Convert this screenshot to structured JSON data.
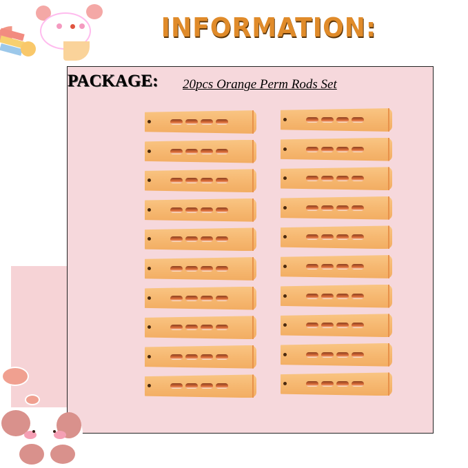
{
  "header": {
    "title": "INFORMATION:"
  },
  "package": {
    "label": "PACKAGE:",
    "value": "20pcs Orange Perm Rods Set"
  },
  "product": {
    "rod_count": 20,
    "columns": 2,
    "rods_per_column": 10,
    "rod_color": "#f6b871",
    "background_color": "#f6d8dc"
  },
  "decorations": {
    "top_left": "bunny-rainbow-sticker",
    "bottom_left": "bunny-face-sticker"
  }
}
